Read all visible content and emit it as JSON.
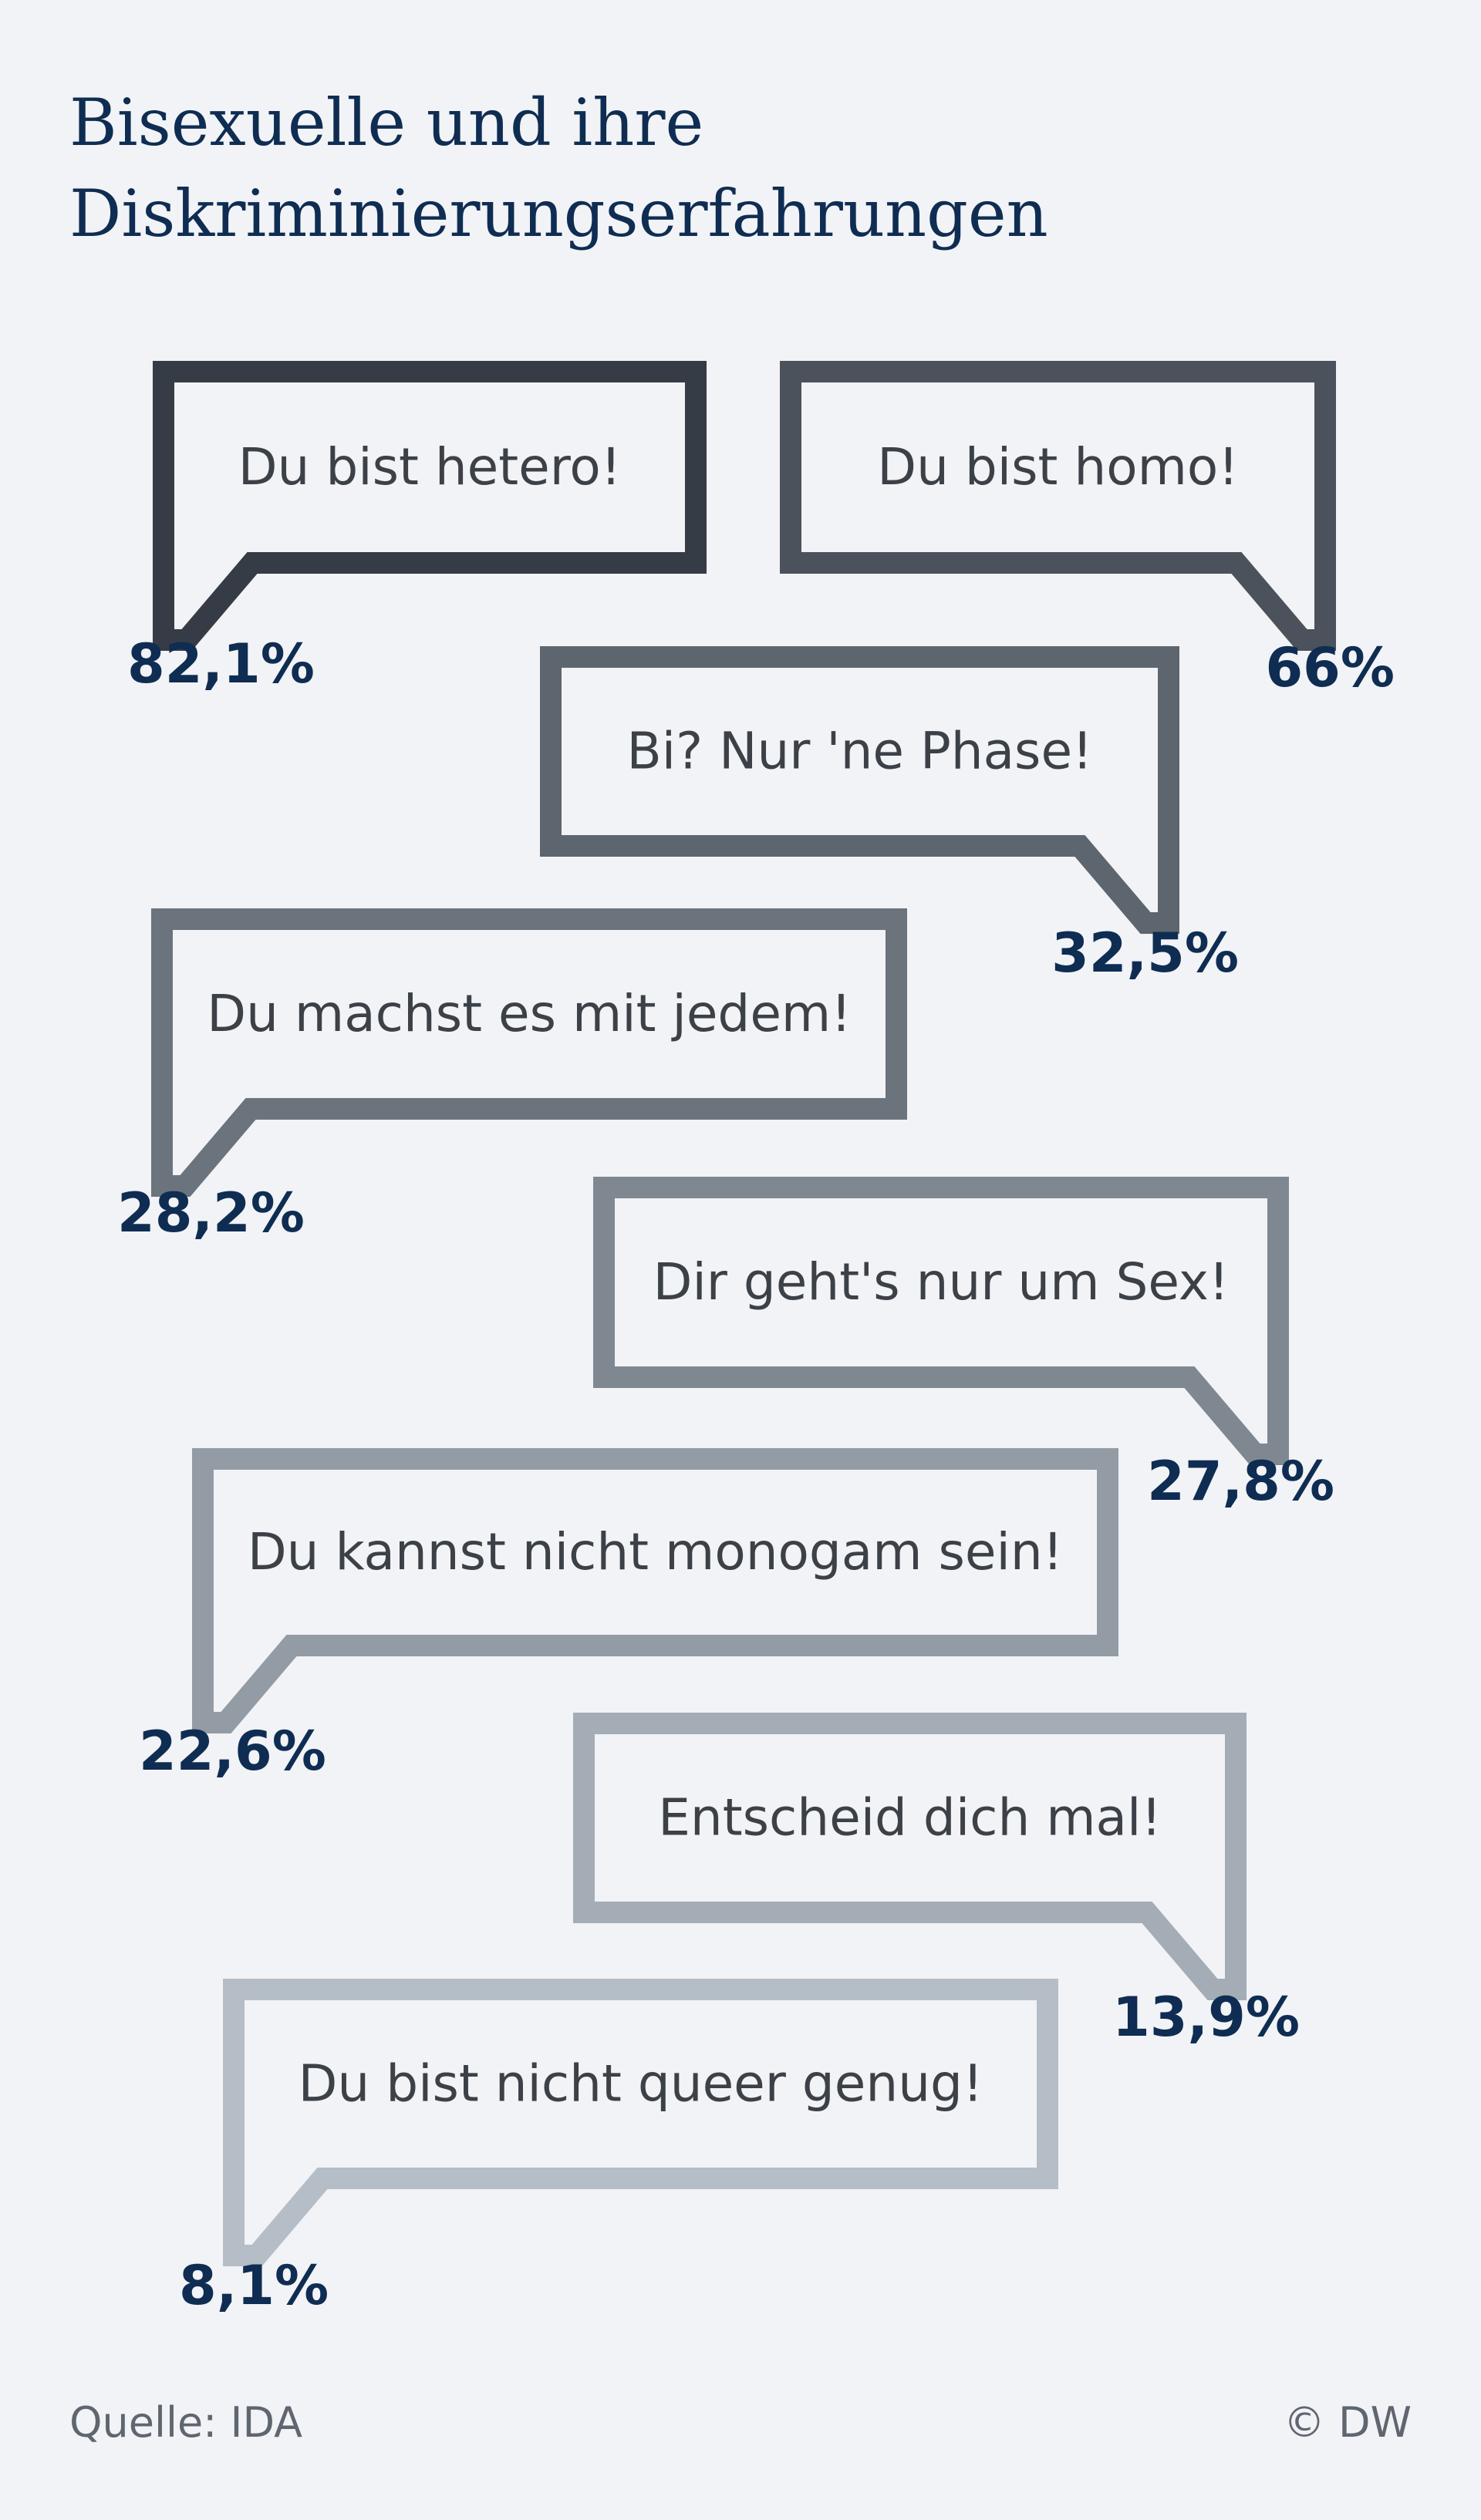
{
  "title_lines": [
    "Bisexuelle und ihre",
    "Diskriminierungserfahrungen"
  ],
  "source": "Quelle: IDA",
  "copyright": "© DW",
  "chart_data": {
    "type": "bar",
    "title": "Bisexuelle und ihre Diskriminierungserfahrungen",
    "categories": [
      "Du bist hetero!",
      "Du bist homo!",
      "Bi? Nur 'ne Phase!",
      "Du machst es mit jedem!",
      "Dir geht's nur um Sex!",
      "Du kannst nicht monogam sein!",
      "Entscheid dich mal!",
      "Du bist nicht queer genug!"
    ],
    "values": [
      82.1,
      66,
      32.5,
      28.2,
      27.8,
      22.6,
      13.9,
      8.1
    ],
    "value_labels": [
      "82,1%",
      "66%",
      "32,5%",
      "28,2%",
      "27,8%",
      "22,6%",
      "13,9%",
      "8,1%"
    ],
    "unit": "%",
    "colors": [
      "#363c45",
      "#4c525b",
      "#5d656e",
      "#6b737d",
      "#7f8891",
      "#939ba5",
      "#a4adb6",
      "#b5bec6"
    ]
  }
}
